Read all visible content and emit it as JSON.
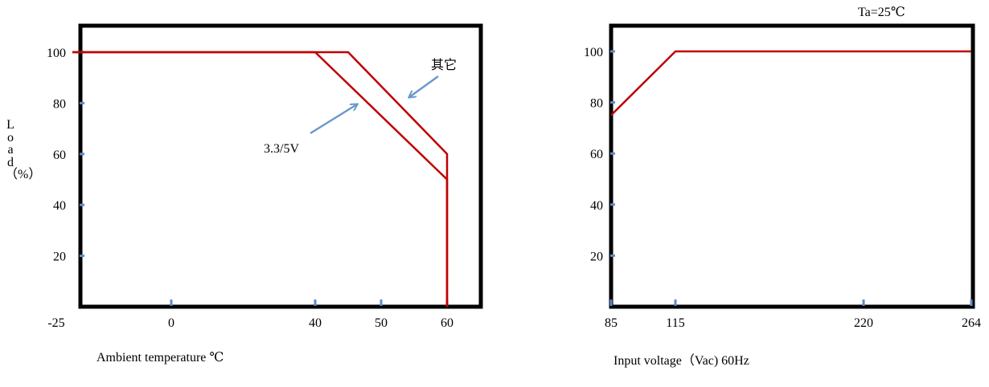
{
  "chart_data": [
    {
      "type": "line",
      "xlabel": "Ambient temperature ℃",
      "ylabel": "Load（%）",
      "xticks": [
        "-25",
        "0",
        "40",
        "50",
        "60"
      ],
      "yticks": [
        "20",
        "40",
        "60",
        "80",
        "100"
      ],
      "xlim": [
        -25,
        70
      ],
      "ylim": [
        0,
        110
      ],
      "series": [
        {
          "name": "其它",
          "x": [
            -25,
            45,
            60,
            60
          ],
          "y": [
            100,
            100,
            60,
            0
          ]
        },
        {
          "name": "3.3/5V",
          "x": [
            -25,
            40,
            60,
            60
          ],
          "y": [
            100,
            100,
            50,
            0
          ]
        }
      ],
      "annotations": [
        "其它",
        "3.3/5V"
      ]
    },
    {
      "type": "line",
      "xlabel": "Input voltage（Vac) 60Hz",
      "xticks": [
        "85",
        "115",
        "220",
        "264"
      ],
      "yticks": [
        "20",
        "40",
        "60",
        "80",
        "100"
      ],
      "xlim": [
        85,
        264
      ],
      "ylim": [
        0,
        110
      ],
      "series": [
        {
          "x": [
            85,
            115,
            264
          ],
          "y": [
            75,
            100,
            100
          ]
        }
      ],
      "annotations": [
        "Ta=25℃"
      ]
    }
  ],
  "colors": {
    "curve": "#c00000",
    "arrow": "#6a99cc",
    "tick": "#5b8fc7",
    "frame": "#000000"
  }
}
